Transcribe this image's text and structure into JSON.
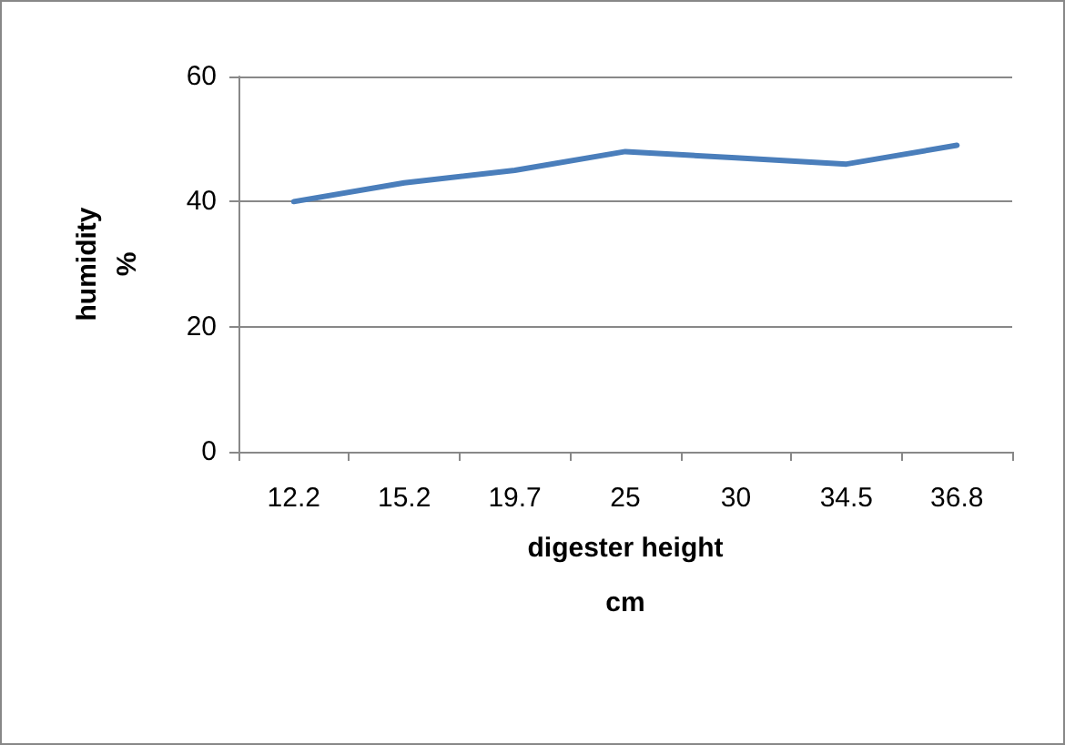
{
  "chart_data": {
    "type": "line",
    "xlabel": "digester height\ncm",
    "ylabel": "humidity\n%",
    "categories": [
      "12.2",
      "15.2",
      "19.7",
      "25",
      "30",
      "34.5",
      "36.8"
    ],
    "series": [
      {
        "color": "#4a7ebb",
        "values": [
          40,
          43,
          45,
          48,
          47,
          46,
          49
        ]
      }
    ],
    "ylim": [
      0,
      60
    ],
    "yticks": [
      0,
      20,
      40,
      60
    ],
    "grid": "y",
    "marker": "none",
    "line_style": "solid"
  }
}
